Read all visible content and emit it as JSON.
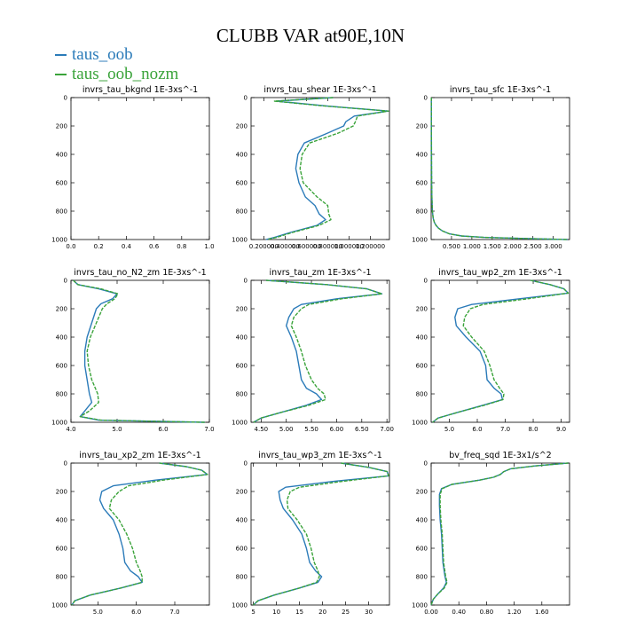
{
  "title": "CLUBB VAR at90E,10N",
  "legend": [
    {
      "name": "taus_oob",
      "color": "#2b7bb9"
    },
    {
      "name": "taus_oob_nozm",
      "color": "#3aa33a"
    }
  ],
  "colors": {
    "series_1": "#2b7bb9",
    "series_2": "#3aa33a"
  },
  "chart_data": [
    {
      "type": "line",
      "title": "invrs_tau_bkgnd   1E-3xs^-1",
      "ylim": [
        1000,
        0
      ],
      "y_ticks": [
        "0",
        "200",
        "400",
        "600",
        "800",
        "1000"
      ],
      "xlim": [
        0,
        1
      ],
      "x_ticks": [
        {
          "v": 0,
          "label": "0.0"
        },
        {
          "v": 0.2,
          "label": "0.2"
        },
        {
          "v": 0.4,
          "label": "0.4"
        },
        {
          "v": 0.6,
          "label": "0.6"
        },
        {
          "v": 0.8,
          "label": "0.8"
        },
        {
          "v": 1,
          "label": "1.0"
        }
      ],
      "series": []
    },
    {
      "type": "line",
      "title": "invrs_tau_shear   1E-3xs^-1",
      "ylim": [
        1000,
        0
      ],
      "y_ticks": [
        "0",
        "200",
        "400",
        "600",
        "800",
        "1000"
      ],
      "xlim": [
        0.08,
        1.38
      ],
      "x_ticks": [
        {
          "v": 0.2,
          "label": "0.200000"
        },
        {
          "v": 0.4,
          "label": "0.400000"
        },
        {
          "v": 0.6,
          "label": "0.600000"
        },
        {
          "v": 0.8,
          "label": "0.800000"
        },
        {
          "v": 1.0,
          "label": "1.000000"
        },
        {
          "v": 1.2,
          "label": "1.200000"
        }
      ],
      "series": [
        {
          "y": [
            0,
            25,
            60,
            95,
            130,
            170,
            200,
            250,
            320,
            400,
            500,
            600,
            700,
            760,
            820,
            860,
            900,
            950,
            985,
            1000
          ],
          "x": [
            0.85,
            0.32,
            0.8,
            1.37,
            1.05,
            0.97,
            0.95,
            0.8,
            0.58,
            0.52,
            0.5,
            0.53,
            0.59,
            0.68,
            0.72,
            0.78,
            0.7,
            0.45,
            0.3,
            0.22
          ]
        },
        {
          "y": [
            0,
            25,
            60,
            95,
            130,
            170,
            200,
            250,
            320,
            400,
            500,
            600,
            700,
            760,
            820,
            860,
            900,
            950,
            985,
            1000
          ],
          "x": [
            0.85,
            0.3,
            0.78,
            1.37,
            1.08,
            1.06,
            1.04,
            0.9,
            0.63,
            0.56,
            0.54,
            0.57,
            0.7,
            0.8,
            0.81,
            0.83,
            0.72,
            0.47,
            0.32,
            0.23
          ]
        }
      ]
    },
    {
      "type": "line",
      "title": "invrs_tau_sfc   1E-3xs^-1",
      "ylim": [
        1000,
        0
      ],
      "y_ticks": [
        "0",
        "200",
        "400",
        "600",
        "800",
        "1000"
      ],
      "xlim": [
        0,
        3.4
      ],
      "x_ticks": [
        {
          "v": 0.5,
          "label": "0.500"
        },
        {
          "v": 1.0,
          "label": "1.000"
        },
        {
          "v": 1.5,
          "label": "1.500"
        },
        {
          "v": 2.0,
          "label": "2.000"
        },
        {
          "v": 2.5,
          "label": "2.500"
        },
        {
          "v": 3.0,
          "label": "3.000"
        }
      ],
      "series": [
        {
          "y": [
            0,
            200,
            400,
            600,
            700,
            800,
            850,
            880,
            900,
            920,
            940,
            960,
            975,
            985,
            992,
            1000
          ],
          "x": [
            0.005,
            0.006,
            0.008,
            0.012,
            0.018,
            0.03,
            0.05,
            0.08,
            0.12,
            0.18,
            0.28,
            0.45,
            0.75,
            1.3,
            2.2,
            3.35
          ]
        },
        {
          "y": [
            0,
            200,
            400,
            600,
            700,
            800,
            850,
            880,
            900,
            920,
            940,
            960,
            975,
            985,
            992,
            1000
          ],
          "x": [
            0.005,
            0.006,
            0.008,
            0.012,
            0.018,
            0.03,
            0.05,
            0.08,
            0.12,
            0.18,
            0.28,
            0.45,
            0.75,
            1.3,
            2.2,
            3.35
          ]
        }
      ]
    },
    {
      "type": "line",
      "title": "invrs_tau_no_N2_zm   1E-3xs^-1",
      "ylim": [
        1000,
        0
      ],
      "y_ticks": [
        "0",
        "200",
        "400",
        "600",
        "800",
        "1000"
      ],
      "xlim": [
        4.0,
        7.0
      ],
      "x_ticks": [
        {
          "v": 4.0,
          "label": "4.0"
        },
        {
          "v": 5.0,
          "label": "5.0"
        },
        {
          "v": 6.0,
          "label": "6.0"
        },
        {
          "v": 7.0,
          "label": "7.0"
        }
      ],
      "series": [
        {
          "y": [
            0,
            30,
            60,
            95,
            130,
            165,
            200,
            300,
            400,
            500,
            600,
            700,
            800,
            860,
            920,
            960,
            985,
            1000
          ],
          "x": [
            4.05,
            4.15,
            4.6,
            5.0,
            4.9,
            4.65,
            4.55,
            4.45,
            4.35,
            4.3,
            4.3,
            4.35,
            4.4,
            4.45,
            4.3,
            4.2,
            4.6,
            6.9
          ]
        },
        {
          "y": [
            0,
            30,
            60,
            95,
            130,
            165,
            200,
            300,
            400,
            500,
            600,
            700,
            800,
            860,
            920,
            960,
            985,
            1000
          ],
          "x": [
            4.05,
            4.15,
            4.65,
            5.02,
            4.95,
            4.78,
            4.68,
            4.55,
            4.42,
            4.35,
            4.38,
            4.45,
            4.58,
            4.6,
            4.4,
            4.2,
            4.65,
            6.9
          ]
        }
      ]
    },
    {
      "type": "line",
      "title": "invrs_tau_zm   1E-3xs^-1",
      "ylim": [
        1000,
        0
      ],
      "y_ticks": [
        "0",
        "200",
        "400",
        "600",
        "800",
        "1000"
      ],
      "xlim": [
        4.3,
        7.05
      ],
      "x_ticks": [
        {
          "v": 4.5,
          "label": "4.50"
        },
        {
          "v": 5.0,
          "label": "5.00"
        },
        {
          "v": 5.5,
          "label": "5.50"
        },
        {
          "v": 6.0,
          "label": "6.00"
        },
        {
          "v": 6.5,
          "label": "6.50"
        },
        {
          "v": 7.0,
          "label": "7.00"
        }
      ],
      "series": [
        {
          "y": [
            0,
            30,
            60,
            95,
            130,
            170,
            200,
            260,
            320,
            400,
            500,
            600,
            700,
            760,
            800,
            840,
            880,
            930,
            970,
            1000
          ],
          "x": [
            4.6,
            5.8,
            6.6,
            6.9,
            6.0,
            5.3,
            5.15,
            5.05,
            5.0,
            5.1,
            5.2,
            5.25,
            5.3,
            5.4,
            5.6,
            5.7,
            5.4,
            4.9,
            4.5,
            4.35
          ]
        },
        {
          "y": [
            0,
            30,
            60,
            95,
            130,
            170,
            200,
            260,
            320,
            400,
            500,
            600,
            700,
            760,
            800,
            840,
            880,
            930,
            970,
            1000
          ],
          "x": [
            4.6,
            5.8,
            6.6,
            6.9,
            6.1,
            5.45,
            5.3,
            5.15,
            5.1,
            5.2,
            5.3,
            5.38,
            5.5,
            5.62,
            5.75,
            5.78,
            5.45,
            4.9,
            4.5,
            4.35
          ]
        }
      ]
    },
    {
      "type": "line",
      "title": "invrs_tau_wp2_zm   1E-3xs^-1",
      "ylim": [
        1000,
        0
      ],
      "y_ticks": [
        "0",
        "200",
        "400",
        "600",
        "800",
        "1000"
      ],
      "xlim": [
        4.35,
        9.3
      ],
      "x_ticks": [
        {
          "v": 5.0,
          "label": "5.0"
        },
        {
          "v": 6.0,
          "label": "6.0"
        },
        {
          "v": 7.0,
          "label": "7.0"
        },
        {
          "v": 8.0,
          "label": "8.0"
        },
        {
          "v": 9.0,
          "label": "9.0"
        }
      ],
      "series": [
        {
          "y": [
            0,
            30,
            60,
            90,
            130,
            170,
            200,
            260,
            320,
            400,
            500,
            600,
            700,
            760,
            800,
            840,
            880,
            930,
            970,
            1000
          ],
          "x": [
            7.9,
            8.6,
            9.1,
            9.25,
            7.5,
            5.8,
            5.3,
            5.2,
            5.25,
            5.6,
            6.1,
            6.3,
            6.35,
            6.6,
            6.85,
            6.9,
            6.2,
            5.3,
            4.6,
            4.4
          ]
        },
        {
          "y": [
            0,
            30,
            60,
            90,
            130,
            170,
            200,
            260,
            320,
            400,
            500,
            600,
            700,
            760,
            800,
            840,
            880,
            930,
            970,
            1000
          ],
          "x": [
            7.9,
            8.6,
            9.1,
            9.25,
            7.8,
            6.2,
            5.75,
            5.55,
            5.5,
            5.8,
            6.25,
            6.45,
            6.6,
            6.8,
            6.95,
            6.92,
            6.25,
            5.3,
            4.6,
            4.4
          ]
        }
      ]
    },
    {
      "type": "line",
      "title": "invrs_tau_xp2_zm   1E-3xs^-1",
      "ylim": [
        1000,
        0
      ],
      "y_ticks": [
        "0",
        "200",
        "400",
        "600",
        "800",
        "1000"
      ],
      "xlim": [
        4.3,
        7.9
      ],
      "x_ticks": [
        {
          "v": 5.0,
          "label": "5.0"
        },
        {
          "v": 6.0,
          "label": "6.0"
        },
        {
          "v": 7.0,
          "label": "7.0"
        }
      ],
      "series": [
        {
          "y": [
            0,
            25,
            50,
            80,
            120,
            160,
            200,
            260,
            320,
            400,
            500,
            600,
            700,
            760,
            800,
            840,
            880,
            930,
            970,
            1000
          ],
          "x": [
            6.6,
            7.3,
            7.7,
            7.85,
            6.5,
            5.4,
            5.1,
            5.05,
            5.15,
            5.4,
            5.55,
            5.65,
            5.7,
            5.85,
            6.05,
            6.15,
            5.6,
            4.8,
            4.4,
            4.32
          ]
        },
        {
          "y": [
            0,
            25,
            50,
            80,
            120,
            160,
            200,
            260,
            320,
            400,
            500,
            600,
            700,
            760,
            800,
            840,
            880,
            930,
            970,
            1000
          ],
          "x": [
            6.6,
            7.3,
            7.7,
            7.85,
            6.7,
            5.8,
            5.55,
            5.35,
            5.3,
            5.55,
            5.75,
            5.9,
            6.0,
            6.1,
            6.15,
            6.15,
            5.6,
            4.8,
            4.4,
            4.32
          ]
        }
      ]
    },
    {
      "type": "line",
      "title": "invrs_tau_wp3_zm   1E-3xs^-1",
      "ylim": [
        1000,
        0
      ],
      "y_ticks": [
        "0",
        "200",
        "400",
        "600",
        "800",
        "1000"
      ],
      "xlim": [
        4.5,
        34.5
      ],
      "x_ticks": [
        {
          "v": 5,
          "label": "5"
        },
        {
          "v": 10,
          "label": "10"
        },
        {
          "v": 15,
          "label": "15"
        },
        {
          "v": 20,
          "label": "20"
        },
        {
          "v": 25,
          "label": "25"
        },
        {
          "v": 30,
          "label": "30"
        }
      ],
      "series": [
        {
          "y": [
            0,
            30,
            60,
            90,
            130,
            170,
            200,
            260,
            320,
            400,
            500,
            600,
            700,
            760,
            800,
            840,
            880,
            930,
            970,
            1000
          ],
          "x": [
            24,
            30,
            34,
            34.3,
            22,
            12,
            10.5,
            10.8,
            11.5,
            13.5,
            15.5,
            16.5,
            17.2,
            18.5,
            19.8,
            19.0,
            15.0,
            9.5,
            6.0,
            5.0
          ]
        },
        {
          "y": [
            0,
            30,
            60,
            90,
            130,
            170,
            200,
            260,
            320,
            400,
            500,
            600,
            700,
            760,
            800,
            840,
            880,
            930,
            970,
            1000
          ],
          "x": [
            24,
            30,
            34,
            34.3,
            24,
            15,
            13.0,
            12.3,
            12.5,
            14.5,
            16.5,
            17.5,
            18.2,
            19.0,
            19.3,
            18.7,
            15.0,
            9.5,
            6.0,
            5.0
          ]
        }
      ]
    },
    {
      "type": "line",
      "title": "bv_freq_sqd   1E-3x1/s^2",
      "ylim": [
        1000,
        0
      ],
      "y_ticks": [
        "0",
        "200",
        "400",
        "600",
        "800",
        "1000"
      ],
      "xlim": [
        0,
        2.0
      ],
      "x_ticks": [
        {
          "v": 0,
          "label": "0.00"
        },
        {
          "v": 0.4,
          "label": "0.40"
        },
        {
          "v": 0.8,
          "label": "0.80"
        },
        {
          "v": 1.2,
          "label": "1.20"
        },
        {
          "v": 1.6,
          "label": "1.60"
        }
      ],
      "series": [
        {
          "y": [
            0,
            20,
            40,
            60,
            80,
            100,
            120,
            150,
            180,
            220,
            300,
            400,
            500,
            600,
            700,
            800,
            840,
            880,
            920,
            960,
            1000
          ],
          "x": [
            1.98,
            1.5,
            1.15,
            1.05,
            1.0,
            0.9,
            0.7,
            0.3,
            0.15,
            0.12,
            0.12,
            0.13,
            0.15,
            0.16,
            0.17,
            0.2,
            0.22,
            0.18,
            0.1,
            0.03,
            0.0
          ]
        },
        {
          "y": [
            0,
            20,
            40,
            60,
            80,
            100,
            120,
            150,
            180,
            220,
            300,
            400,
            500,
            600,
            700,
            800,
            840,
            880,
            920,
            960,
            1000
          ],
          "x": [
            1.98,
            1.5,
            1.15,
            1.05,
            1.0,
            0.9,
            0.7,
            0.3,
            0.16,
            0.13,
            0.13,
            0.14,
            0.16,
            0.17,
            0.18,
            0.21,
            0.23,
            0.19,
            0.1,
            0.03,
            0.0
          ]
        }
      ]
    }
  ]
}
